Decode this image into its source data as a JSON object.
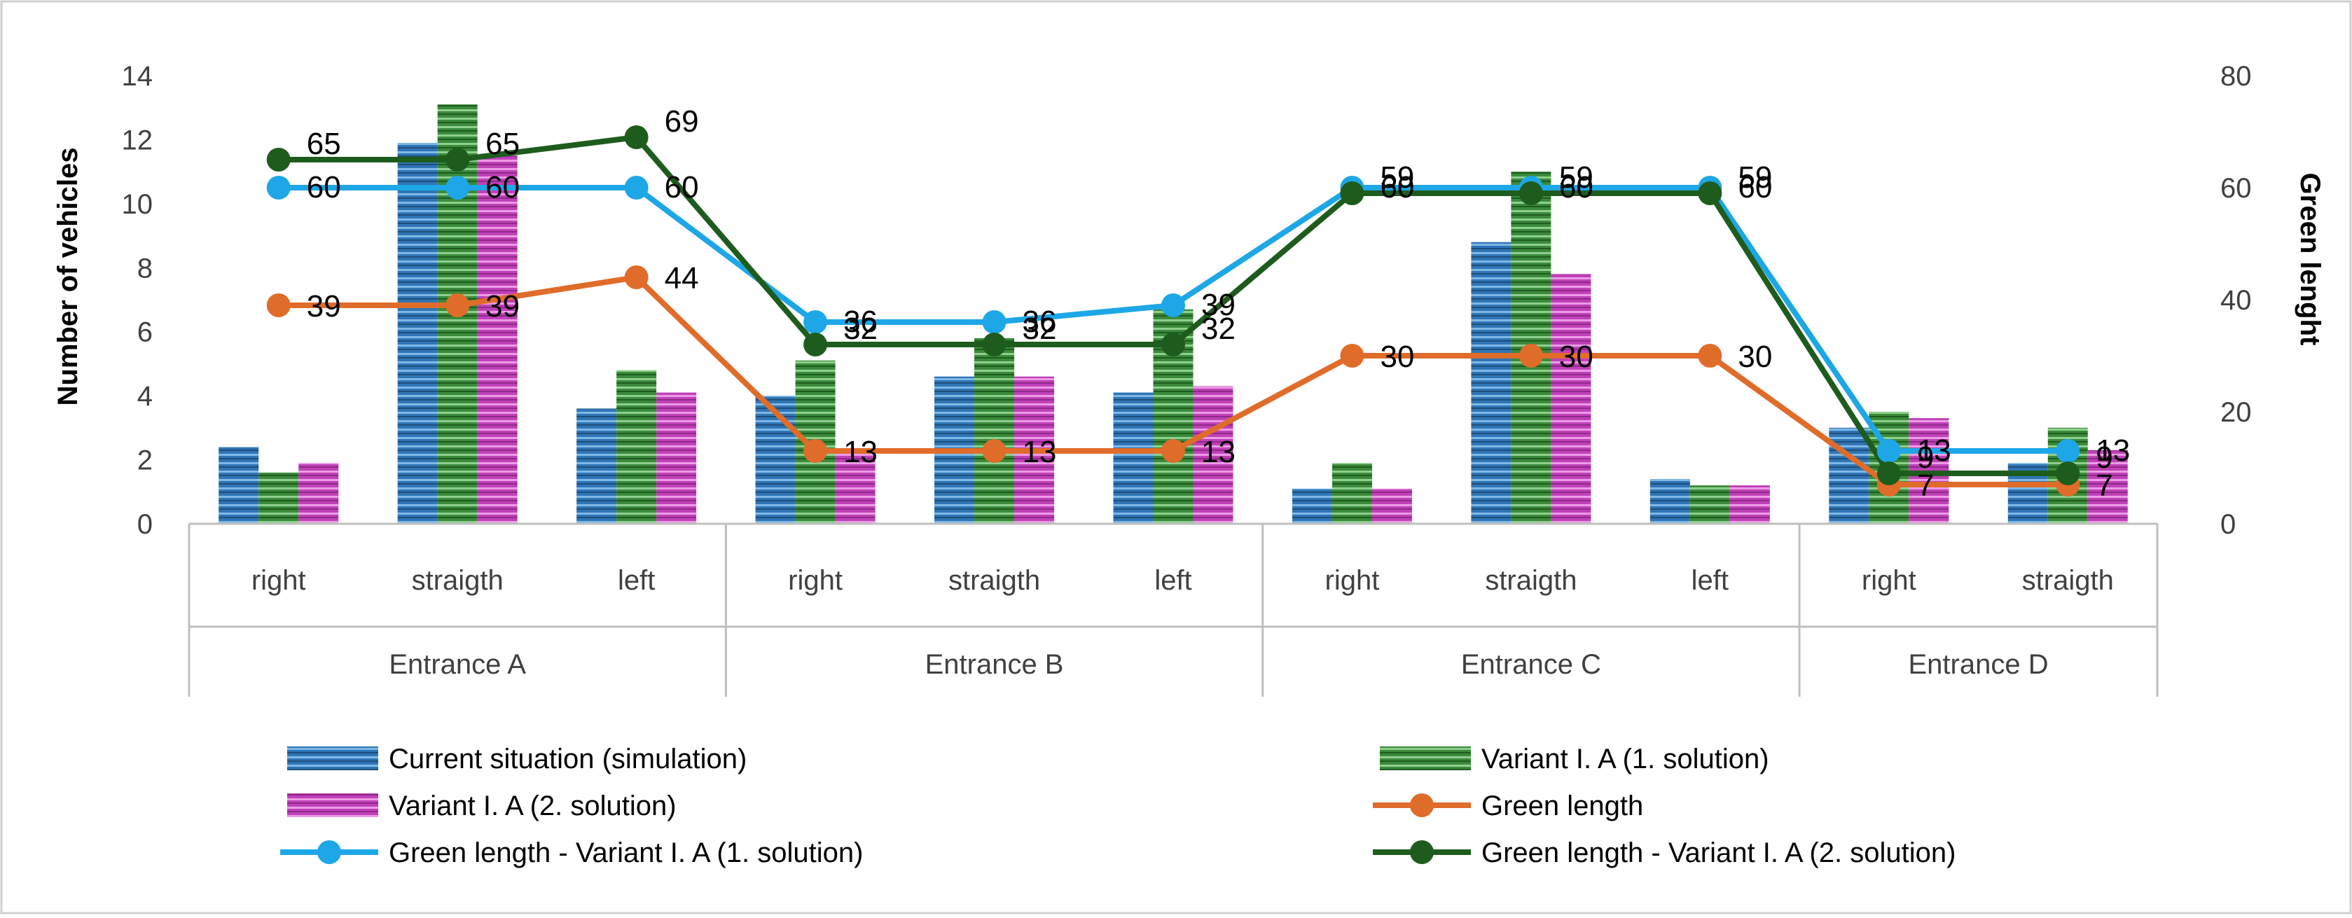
{
  "chart_data": {
    "type": "bar",
    "title": "",
    "xlabel": "",
    "ylabel": "Number of vehicles",
    "y2label": "Green lenght",
    "ylim": [
      0,
      14
    ],
    "y2lim": [
      0,
      80
    ],
    "yticks": [
      "0",
      "2",
      "4",
      "6",
      "8",
      "10",
      "12",
      "14"
    ],
    "y2ticks": [
      "0",
      "20",
      "40",
      "60",
      "80"
    ],
    "categories": [
      {
        "group": "Entrance A",
        "label": "right"
      },
      {
        "group": "Entrance A",
        "label": "straigth"
      },
      {
        "group": "Entrance A",
        "label": "left"
      },
      {
        "group": "Entrance B",
        "label": "right"
      },
      {
        "group": "Entrance B",
        "label": "straigth"
      },
      {
        "group": "Entrance B",
        "label": "left"
      },
      {
        "group": "Entrance C",
        "label": "right"
      },
      {
        "group": "Entrance C",
        "label": "straigth"
      },
      {
        "group": "Entrance C",
        "label": "left"
      },
      {
        "group": "Entrance D",
        "label": "right"
      },
      {
        "group": "Entrance D",
        "label": "straigth"
      }
    ],
    "groups": [
      "Entrance A",
      "Entrance B",
      "Entrance C",
      "Entrance D"
    ],
    "bar_series": [
      {
        "name": "Current situation (simulation)",
        "color": "#2e75b6",
        "values": [
          2.4,
          11.9,
          3.6,
          4.0,
          4.6,
          4.1,
          1.1,
          8.8,
          1.4,
          3.0,
          1.9
        ]
      },
      {
        "name": "Variant I. A (1. solution)",
        "color": "#3a8a3a",
        "values": [
          1.6,
          13.1,
          4.8,
          5.1,
          5.8,
          6.7,
          1.9,
          11.0,
          1.2,
          3.5,
          3.0
        ]
      },
      {
        "name": "Variant I. A (2. solution)",
        "color": "#c040b8",
        "values": [
          1.9,
          11.5,
          4.1,
          2.3,
          4.6,
          4.3,
          1.1,
          7.8,
          1.2,
          3.3,
          2.3
        ]
      }
    ],
    "line_series": [
      {
        "name": "Green length",
        "color": "#e06c2a",
        "axis": "secondary",
        "values": [
          39,
          39,
          44,
          13,
          13,
          13,
          30,
          30,
          30,
          7,
          7
        ],
        "labels": [
          "39",
          "39",
          "44",
          "13",
          "13",
          "13",
          "30",
          "30",
          "30",
          "7",
          "7"
        ]
      },
      {
        "name": "Green length - Variant I. A (1. solution)",
        "color": "#1ea7e6",
        "axis": "secondary",
        "values": [
          60,
          60,
          60,
          36,
          36,
          39,
          60,
          60,
          60,
          13,
          13
        ],
        "labels": [
          "60",
          "60",
          "60",
          "36",
          "36",
          "39",
          "60",
          "60",
          "60",
          "13",
          "13"
        ]
      },
      {
        "name": "Green length - Variant I. A (2. solution)",
        "color": "#1e5c1e",
        "axis": "secondary",
        "values": [
          65,
          65,
          69,
          32,
          32,
          32,
          59,
          59,
          59,
          9,
          9
        ],
        "labels": [
          "65",
          "65",
          "69",
          "32",
          "32",
          "32",
          "59",
          "59",
          "59",
          "9",
          "9"
        ]
      }
    ],
    "legend_position": "bottom"
  }
}
